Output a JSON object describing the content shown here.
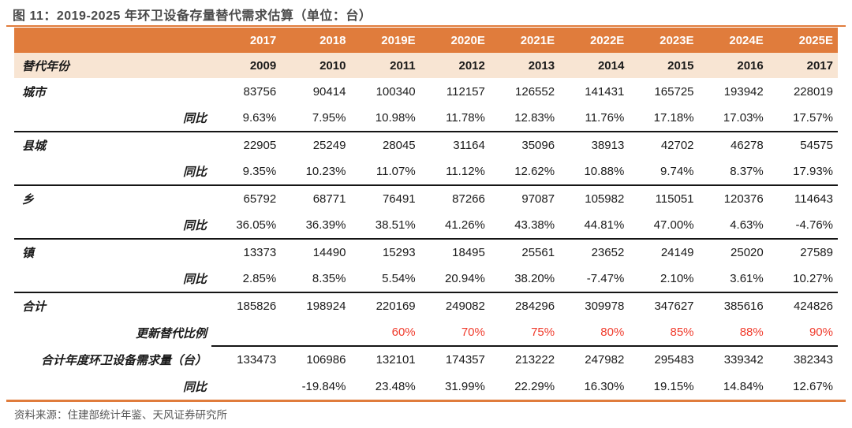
{
  "title": "图 11：2019-2025 年环卫设备存量替代需求估算（单位：台）",
  "source": "资料来源：住建部统计年鉴、天风证券研究所",
  "colors": {
    "header_bg": "#E07C3C",
    "subheader_bg": "#F8E5D3",
    "accent_red": "#F03B2C",
    "rule_black": "#151515",
    "title_text": "#4a4a4a",
    "source_text": "#585858"
  },
  "table": {
    "year_headers": [
      "2017",
      "2018",
      "2019E",
      "2020E",
      "2021E",
      "2022E",
      "2023E",
      "2024E",
      "2025E"
    ],
    "replace_year_label": "替代年份",
    "replace_years": [
      "2009",
      "2010",
      "2011",
      "2012",
      "2013",
      "2014",
      "2015",
      "2016",
      "2017"
    ],
    "yoy_label": "同比",
    "groups": [
      {
        "label": "城市",
        "values": [
          "83756",
          "90414",
          "100340",
          "112157",
          "126552",
          "141431",
          "165725",
          "193942",
          "228019"
        ],
        "yoy": [
          "9.63%",
          "7.95%",
          "10.98%",
          "11.78%",
          "12.83%",
          "11.76%",
          "17.18%",
          "17.03%",
          "17.57%"
        ]
      },
      {
        "label": "县城",
        "values": [
          "22905",
          "25249",
          "28045",
          "31164",
          "35096",
          "38913",
          "42702",
          "46278",
          "54575"
        ],
        "yoy": [
          "9.35%",
          "10.23%",
          "11.07%",
          "11.12%",
          "12.62%",
          "10.88%",
          "9.74%",
          "8.37%",
          "17.93%"
        ]
      },
      {
        "label": "乡",
        "values": [
          "65792",
          "68771",
          "76491",
          "87266",
          "97087",
          "105982",
          "115051",
          "120376",
          "114643"
        ],
        "yoy": [
          "36.05%",
          "36.39%",
          "38.51%",
          "41.26%",
          "43.38%",
          "44.81%",
          "47.00%",
          "4.63%",
          "-4.76%"
        ]
      },
      {
        "label": "镇",
        "values": [
          "13373",
          "14490",
          "15293",
          "18495",
          "25561",
          "23652",
          "24149",
          "25020",
          "27589"
        ],
        "yoy": [
          "2.85%",
          "8.35%",
          "5.54%",
          "20.94%",
          "38.20%",
          "-7.47%",
          "2.10%",
          "3.61%",
          "10.27%"
        ]
      }
    ],
    "total": {
      "label": "合计",
      "values": [
        "185826",
        "198924",
        "220169",
        "249082",
        "284296",
        "309978",
        "347627",
        "385616",
        "424826"
      ]
    },
    "replacement_ratio": {
      "label": "更新替代比例",
      "values": [
        "",
        "",
        "60%",
        "70%",
        "75%",
        "80%",
        "85%",
        "88%",
        "90%"
      ]
    },
    "annual_demand": {
      "label": "合计年度环卫设备需求量（台）",
      "values": [
        "133473",
        "106986",
        "132101",
        "174357",
        "213222",
        "247982",
        "295483",
        "339342",
        "382343"
      ]
    },
    "annual_demand_yoy": {
      "label": "同比",
      "values": [
        "",
        "-19.84%",
        "23.48%",
        "31.99%",
        "22.29%",
        "16.30%",
        "19.15%",
        "14.84%",
        "12.67%"
      ]
    }
  }
}
